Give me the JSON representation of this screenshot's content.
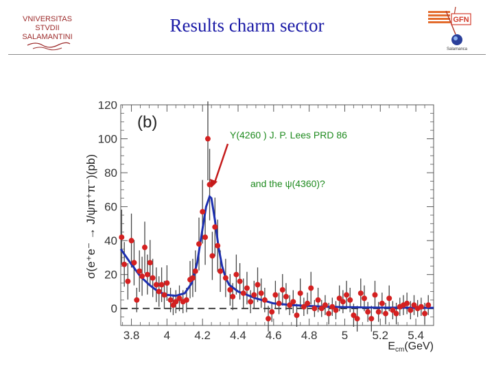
{
  "slide": {
    "title": "Results charm sector"
  },
  "logos": {
    "left_lines": [
      "VNIVERSITAS",
      "STVDII",
      "SALAMANTINI"
    ],
    "right_text": "GFN",
    "right_sub": "Salamanca"
  },
  "colors": {
    "title": "#1a1aa6",
    "data": "#d42020",
    "fit": "#1c2fb0",
    "annotation_green": "#1e8a1e",
    "annotation_blue": "#1a1aa6"
  },
  "chart_data": {
    "type": "scatter",
    "panel_label": "(b)",
    "xlabel_main": "E",
    "xlabel_sub": "cm",
    "xlabel_unit": "(GeV)",
    "ylabel": "σ(e⁺e⁻ → J/ψπ⁺π⁻)(pb)",
    "xlim": [
      3.74,
      5.5
    ],
    "ylim": [
      -10,
      120
    ],
    "xticks": [
      "3.8",
      "4",
      "4.2",
      "4.4",
      "4.6",
      "4.8",
      "5",
      "5.2",
      "5.4"
    ],
    "yticks": [
      "0",
      "20",
      "40",
      "60",
      "80",
      "100",
      "120"
    ],
    "annotations": [
      {
        "text": "Y(4260 ) J. P. Lees PRD 86",
        "color": "green"
      },
      {
        "text": "and the ψ(4360)?",
        "color": "green"
      }
    ],
    "series": [
      {
        "name": "data",
        "points": [
          [
            3.745,
            42
          ],
          [
            3.76,
            26
          ],
          [
            3.78,
            16
          ],
          [
            3.8,
            40
          ],
          [
            3.815,
            27
          ],
          [
            3.83,
            5
          ],
          [
            3.845,
            22
          ],
          [
            3.86,
            19
          ],
          [
            3.875,
            36
          ],
          [
            3.89,
            20
          ],
          [
            3.905,
            27
          ],
          [
            3.92,
            18
          ],
          [
            3.94,
            14
          ],
          [
            3.955,
            10
          ],
          [
            3.97,
            14
          ],
          [
            3.985,
            8
          ],
          [
            4.0,
            15
          ],
          [
            4.02,
            5
          ],
          [
            4.035,
            2
          ],
          [
            4.05,
            4
          ],
          [
            4.07,
            6
          ],
          [
            4.09,
            4
          ],
          [
            4.11,
            5
          ],
          [
            4.13,
            17
          ],
          [
            4.145,
            18
          ],
          [
            4.16,
            22
          ],
          [
            4.18,
            38
          ],
          [
            4.2,
            57
          ],
          [
            4.215,
            42
          ],
          [
            4.23,
            100
          ],
          [
            4.24,
            73
          ],
          [
            4.255,
            31
          ],
          [
            4.27,
            48
          ],
          [
            4.285,
            37
          ],
          [
            4.3,
            22
          ],
          [
            4.33,
            18
          ],
          [
            4.355,
            11
          ],
          [
            4.37,
            7
          ],
          [
            4.39,
            20
          ],
          [
            4.41,
            16
          ],
          [
            4.43,
            9
          ],
          [
            4.45,
            12
          ],
          [
            4.47,
            4
          ],
          [
            4.49,
            8
          ],
          [
            4.51,
            14
          ],
          [
            4.53,
            9
          ],
          [
            4.55,
            5
          ],
          [
            4.57,
            -6
          ],
          [
            4.59,
            -2
          ],
          [
            4.61,
            8
          ],
          [
            4.63,
            3
          ],
          [
            4.65,
            11
          ],
          [
            4.67,
            7
          ],
          [
            4.69,
            2
          ],
          [
            4.71,
            4
          ],
          [
            4.73,
            -4
          ],
          [
            4.75,
            9
          ],
          [
            4.77,
            1
          ],
          [
            4.79,
            3
          ],
          [
            4.81,
            12
          ],
          [
            4.83,
            0
          ],
          [
            4.85,
            5
          ],
          [
            4.87,
            0
          ],
          [
            4.89,
            2
          ],
          [
            4.91,
            -3
          ],
          [
            4.93,
            1
          ],
          [
            4.95,
            -1
          ],
          [
            4.97,
            6
          ],
          [
            4.99,
            4
          ],
          [
            5.01,
            8
          ],
          [
            5.03,
            5
          ],
          [
            5.05,
            -4
          ],
          [
            5.07,
            -6
          ],
          [
            5.09,
            9
          ],
          [
            5.11,
            6
          ],
          [
            5.13,
            -2
          ],
          [
            5.15,
            -6
          ],
          [
            5.17,
            8
          ],
          [
            5.19,
            -2
          ],
          [
            5.21,
            3
          ],
          [
            5.23,
            -3
          ],
          [
            5.25,
            6
          ],
          [
            5.27,
            -1
          ],
          [
            5.29,
            -3
          ],
          [
            5.31,
            1
          ],
          [
            5.33,
            2
          ],
          [
            5.35,
            3
          ],
          [
            5.37,
            -1
          ],
          [
            5.39,
            2
          ],
          [
            5.41,
            0
          ],
          [
            5.43,
            1
          ],
          [
            5.45,
            -3
          ],
          [
            5.47,
            2
          ]
        ]
      },
      {
        "name": "fit",
        "points": [
          [
            3.74,
            35
          ],
          [
            3.8,
            26
          ],
          [
            3.85,
            19
          ],
          [
            3.9,
            14
          ],
          [
            3.95,
            10
          ],
          [
            4.0,
            8
          ],
          [
            4.05,
            7.5
          ],
          [
            4.1,
            9
          ],
          [
            4.14,
            15
          ],
          [
            4.17,
            27
          ],
          [
            4.2,
            47
          ],
          [
            4.22,
            60
          ],
          [
            4.24,
            66
          ],
          [
            4.25,
            65
          ],
          [
            4.27,
            52
          ],
          [
            4.29,
            36
          ],
          [
            4.31,
            25
          ],
          [
            4.33,
            18
          ],
          [
            4.35,
            14
          ],
          [
            4.4,
            10
          ],
          [
            4.45,
            8
          ],
          [
            4.5,
            6
          ],
          [
            4.55,
            4.5
          ],
          [
            4.6,
            3
          ],
          [
            4.7,
            2
          ],
          [
            4.8,
            1.5
          ],
          [
            4.9,
            1
          ],
          [
            5.0,
            0.8
          ],
          [
            5.1,
            0.6
          ],
          [
            5.2,
            0.5
          ],
          [
            5.3,
            0.5
          ],
          [
            5.4,
            0.4
          ],
          [
            5.5,
            0.4
          ]
        ]
      }
    ]
  }
}
